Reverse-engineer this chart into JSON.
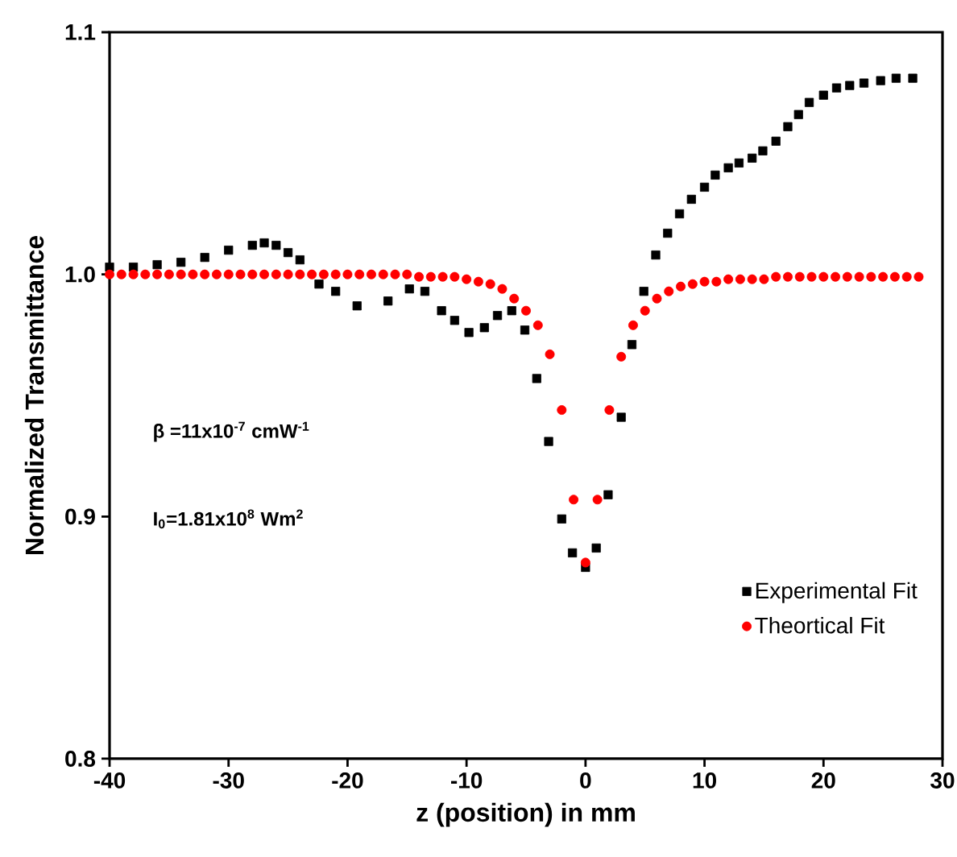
{
  "chart_data": {
    "type": "scatter",
    "xlabel": "z (position) in mm",
    "ylabel": "Normalized Transmittance",
    "xlim": [
      -40,
      30
    ],
    "ylim": [
      0.8,
      1.1
    ],
    "xticks": [
      -40,
      -30,
      -20,
      -10,
      0,
      10,
      20,
      30
    ],
    "yticks": [
      0.8,
      0.9,
      {
        "value": 1.0,
        "label": "1.0"
      },
      1.1
    ],
    "legend": "bottom right",
    "grid": false,
    "annotations": [
      "β =11x10$^{-7}$ cmW$^{-1}$",
      "I$_{0}$=1.81x10$^{8}$ Wm$^{2}$"
    ],
    "series": [
      {
        "name": "Experimental Fit",
        "color": "#000000",
        "marker": "square",
        "x": [
          -40,
          -38,
          -36,
          -34,
          -32,
          -30,
          -28,
          -27,
          -26,
          -25,
          -24,
          -22.4,
          -21,
          -19.2,
          -16.6,
          -14.8,
          -13.5,
          -12.1,
          -11,
          -9.8,
          -8.5,
          -7.4,
          -6.2,
          -5.1,
          -4.1,
          -3.1,
          -2,
          -1.1,
          0,
          0.9,
          1.9,
          3,
          3.9,
          4.9,
          5.9,
          6.9,
          7.9,
          8.9,
          10,
          10.9,
          12,
          12.9,
          14,
          14.9,
          16,
          17,
          17.9,
          18.8,
          20,
          21.1,
          22.2,
          23.4,
          24.8,
          26.1,
          27.5
        ],
        "values": [
          1.003,
          1.003,
          1.004,
          1.005,
          1.007,
          1.01,
          1.012,
          1.013,
          1.012,
          1.009,
          1.006,
          0.996,
          0.993,
          0.987,
          0.989,
          0.994,
          0.993,
          0.985,
          0.981,
          0.976,
          0.978,
          0.983,
          0.985,
          0.977,
          0.957,
          0.931,
          0.899,
          0.885,
          0.879,
          0.887,
          0.909,
          0.941,
          0.971,
          0.993,
          1.008,
          1.017,
          1.025,
          1.031,
          1.036,
          1.041,
          1.044,
          1.046,
          1.048,
          1.051,
          1.055,
          1.061,
          1.066,
          1.071,
          1.074,
          1.077,
          1.078,
          1.079,
          1.08,
          1.081,
          1.081
        ]
      },
      {
        "name": "Theortical Fit",
        "color": "#ff0000",
        "marker": "circle",
        "x": [
          -40,
          -39,
          -38,
          -37,
          -36,
          -35,
          -34,
          -33,
          -32,
          -31,
          -30,
          -29,
          -28,
          -27,
          -26,
          -25,
          -24,
          -23,
          -22,
          -21,
          -20,
          -19,
          -18,
          -17,
          -16,
          -15,
          -14,
          -13,
          -12,
          -11,
          -10,
          -9,
          -8,
          -7,
          -6,
          -5,
          -4,
          -3,
          -2,
          -1,
          0,
          1,
          2,
          3,
          4,
          5,
          6,
          7,
          8,
          9,
          10,
          11,
          12,
          13,
          14,
          15,
          16,
          17,
          18,
          19,
          20,
          21,
          22,
          23,
          24,
          25,
          26,
          27,
          28
        ],
        "values": [
          1.0,
          1.0,
          1.0,
          1.0,
          1.0,
          1.0,
          1.0,
          1.0,
          1.0,
          1.0,
          1.0,
          1.0,
          1.0,
          1.0,
          1.0,
          1.0,
          1.0,
          1.0,
          1.0,
          1.0,
          1.0,
          1.0,
          1.0,
          1.0,
          1.0,
          1.0,
          0.999,
          0.999,
          0.999,
          0.999,
          0.998,
          0.997,
          0.996,
          0.994,
          0.99,
          0.985,
          0.979,
          0.967,
          0.944,
          0.907,
          0.881,
          0.907,
          0.944,
          0.966,
          0.979,
          0.985,
          0.99,
          0.993,
          0.995,
          0.996,
          0.997,
          0.997,
          0.998,
          0.998,
          0.998,
          0.998,
          0.999,
          0.999,
          0.999,
          0.999,
          0.999,
          0.999,
          0.999,
          0.999,
          0.999,
          0.999,
          0.999,
          0.999,
          0.999
        ]
      }
    ]
  }
}
